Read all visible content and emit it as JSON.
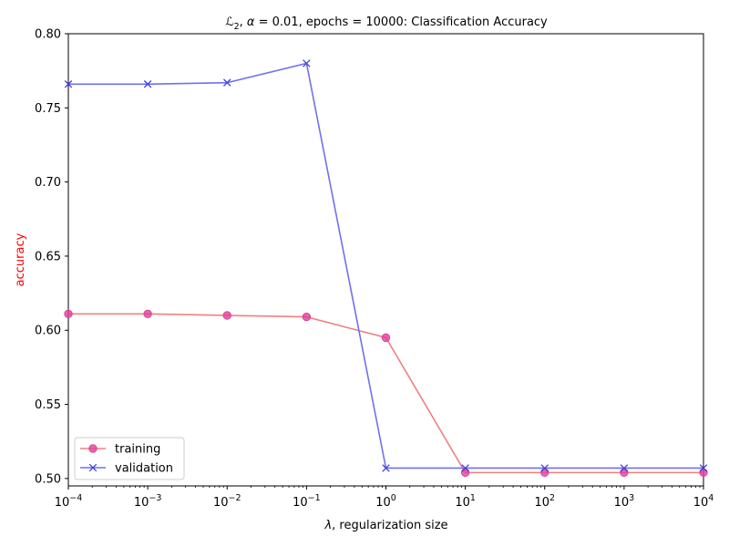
{
  "chart_data": {
    "type": "line",
    "title": {
      "prefix": "ℒ",
      "prefix_sub": "2",
      "alpha_symbol": "α",
      "rest": " = 0.01, epochs = 10000: Classification Accuracy"
    },
    "xlabel": {
      "symbol": "λ",
      "text": ", regularization size"
    },
    "ylabel": "accuracy",
    "ylabel_color": "#ff0000",
    "x_scale": "log",
    "xlim": [
      0.0001,
      10000
    ],
    "ylim": [
      0.495,
      0.8
    ],
    "x_ticks": [
      {
        "base": "10",
        "exp": "−4"
      },
      {
        "base": "10",
        "exp": "−3"
      },
      {
        "base": "10",
        "exp": "−2"
      },
      {
        "base": "10",
        "exp": "−1"
      },
      {
        "base": "10",
        "exp": "0"
      },
      {
        "base": "10",
        "exp": "1"
      },
      {
        "base": "10",
        "exp": "2"
      },
      {
        "base": "10",
        "exp": "3"
      },
      {
        "base": "10",
        "exp": "4"
      }
    ],
    "y_ticks": [
      "0.50",
      "0.55",
      "0.60",
      "0.65",
      "0.70",
      "0.75",
      "0.80"
    ],
    "x": [
      0.0001,
      0.001,
      0.01,
      0.1,
      1,
      10,
      100,
      1000,
      10000
    ],
    "series": [
      {
        "name": "training",
        "marker": "circle",
        "line_color": "#f08080",
        "marker_color": "#e0409a",
        "values": [
          0.611,
          0.611,
          0.61,
          0.609,
          0.595,
          0.504,
          0.504,
          0.504,
          0.504
        ]
      },
      {
        "name": "validation",
        "marker": "x",
        "line_color": "#7070f0",
        "marker_color": "#4040e0",
        "values": [
          0.766,
          0.766,
          0.767,
          0.78,
          0.507,
          0.507,
          0.507,
          0.507,
          0.507
        ]
      }
    ],
    "legend_position": "lower-left",
    "grid": false
  }
}
